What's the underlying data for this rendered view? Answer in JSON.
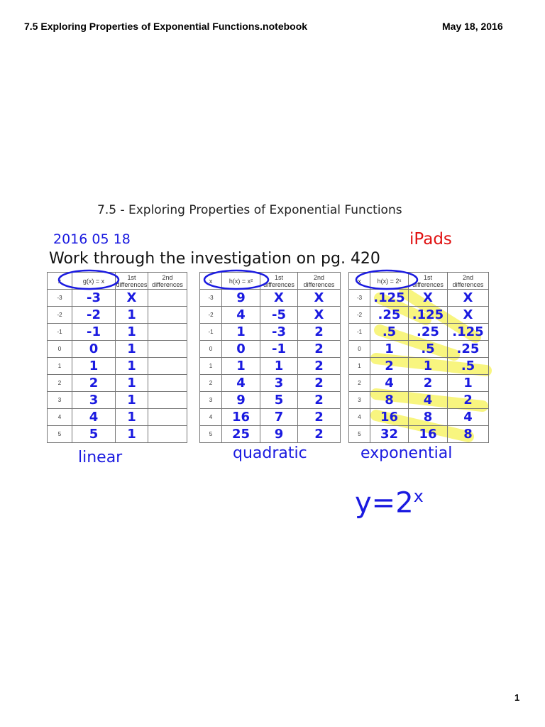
{
  "header": {
    "title": "7.5 Exploring Properties of Exponential Functions.notebook",
    "date": "May 18, 2016"
  },
  "page": {
    "subtitle": "7.5 - Exploring Properties of Exponential Functions",
    "date": "2016 05 18",
    "note": "iPads",
    "instruction": "Work through the investigation on pg. 420",
    "page_number": "1"
  },
  "tables": [
    {
      "columns": [
        "x",
        "g(x) = x",
        "1st differences",
        "2nd differences"
      ],
      "label": "linear",
      "rows": [
        [
          "-3",
          "-3",
          "X"
        ],
        [
          "-2",
          "-2",
          "1"
        ],
        [
          "-1",
          "-1",
          "1"
        ],
        [
          "0",
          "0",
          "1"
        ],
        [
          "1",
          "1",
          "1"
        ],
        [
          "2",
          "2",
          "1"
        ],
        [
          "3",
          "3",
          "1"
        ],
        [
          "4",
          "4",
          "1"
        ],
        [
          "5",
          "5",
          "1"
        ]
      ]
    },
    {
      "columns": [
        "x",
        "h(x) = x²",
        "1st differences",
        "2nd differences"
      ],
      "label": "quadratic",
      "rows": [
        [
          "-3",
          "9",
          "X",
          "X"
        ],
        [
          "-2",
          "4",
          "-5",
          "X"
        ],
        [
          "-1",
          "1",
          "-3",
          "2"
        ],
        [
          "0",
          "0",
          "-1",
          "2"
        ],
        [
          "1",
          "1",
          "1",
          "2"
        ],
        [
          "2",
          "4",
          "3",
          "2"
        ],
        [
          "3",
          "9",
          "5",
          "2"
        ],
        [
          "4",
          "16",
          "7",
          "2"
        ],
        [
          "5",
          "25",
          "9",
          "2"
        ]
      ]
    },
    {
      "columns": [
        "x",
        "h(x) = 2ˣ",
        "1st differences",
        "2nd differences"
      ],
      "label": "exponential",
      "rows": [
        [
          "-3",
          ".125",
          "X",
          "X"
        ],
        [
          "-2",
          ".25",
          ".125",
          "X"
        ],
        [
          "-1",
          ".5",
          ".25",
          ".125"
        ],
        [
          "0",
          "1",
          ".5",
          ".25"
        ],
        [
          "1",
          "2",
          "1",
          ".5"
        ],
        [
          "2",
          "4",
          "2",
          "1"
        ],
        [
          "3",
          "8",
          "4",
          "2"
        ],
        [
          "4",
          "16",
          "8",
          "4"
        ],
        [
          "5",
          "32",
          "16",
          "8"
        ]
      ]
    }
  ],
  "formula": {
    "base": "y=2",
    "exponent": "x"
  }
}
